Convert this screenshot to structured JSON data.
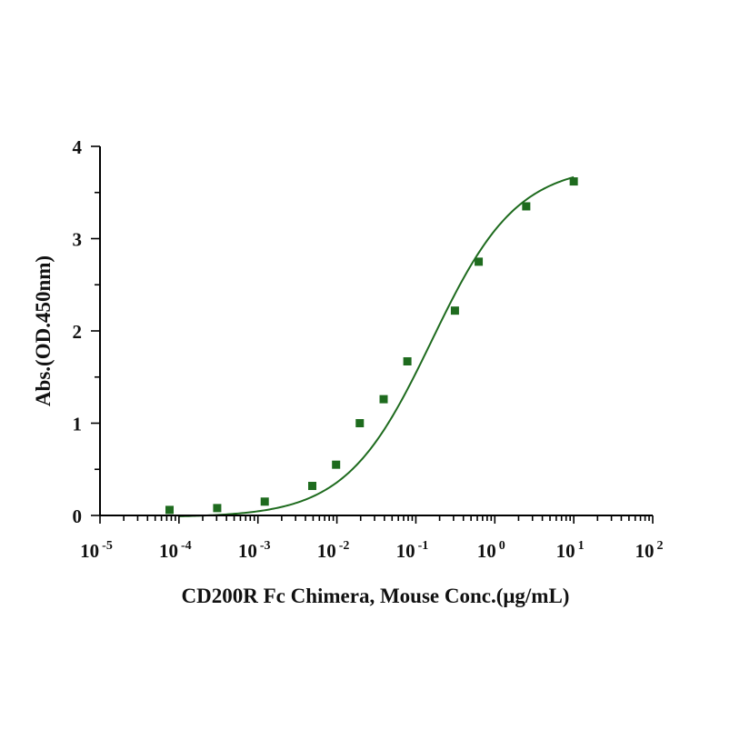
{
  "chart_data": {
    "type": "scatter",
    "title": "",
    "xlabel": "CD200R Fc Chimera, Mouse Conc.(μg/mL)",
    "ylabel": "Abs.(OD.450nm)",
    "x_scale": "log10",
    "xlim": [
      1e-05,
      100
    ],
    "ylim": [
      0,
      4
    ],
    "x_tick_exponents": [
      -5,
      -4,
      -3,
      -2,
      -1,
      0,
      1,
      2
    ],
    "x_tick_base": "10",
    "y_ticks": [
      0,
      1,
      2,
      3,
      4
    ],
    "grid": false,
    "legend": "none",
    "series": [
      {
        "marker": "square",
        "color": "#1e6b1e",
        "points": [
          {
            "x": 7.6e-05,
            "y": 0.06
          },
          {
            "x": 0.000305,
            "y": 0.08
          },
          {
            "x": 0.00122,
            "y": 0.15
          },
          {
            "x": 0.00488,
            "y": 0.32
          },
          {
            "x": 0.00977,
            "y": 0.55
          },
          {
            "x": 0.0195,
            "y": 1.0
          },
          {
            "x": 0.0391,
            "y": 1.26
          },
          {
            "x": 0.0781,
            "y": 1.67
          },
          {
            "x": 0.3125,
            "y": 2.22
          },
          {
            "x": 0.625,
            "y": 2.75
          },
          {
            "x": 2.5,
            "y": 3.35
          },
          {
            "x": 10,
            "y": 3.62
          }
        ],
        "fit": {
          "model": "4PL",
          "bottom": -0.02,
          "top": 3.8,
          "ec50": 0.158,
          "hill": 0.8,
          "x_range": [
            0.0001,
            10
          ]
        }
      }
    ]
  }
}
